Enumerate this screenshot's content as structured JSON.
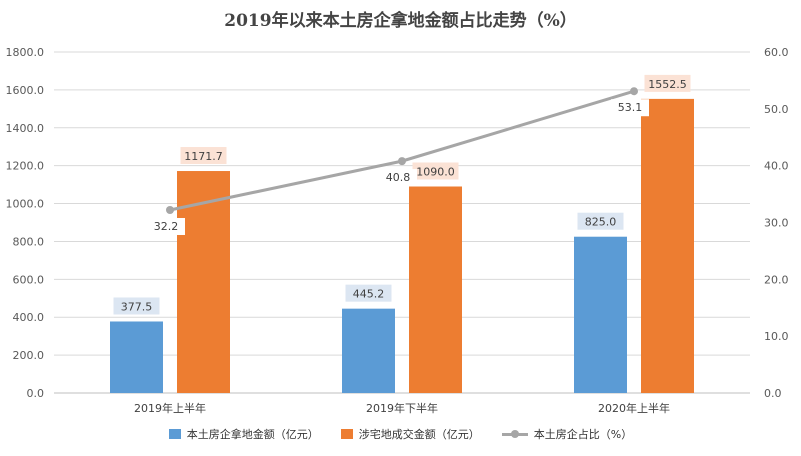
{
  "chart_data": {
    "type": "bar",
    "title": "2019年以来本土房企拿地金额占比走势（%）",
    "categories": [
      "2019年上半年",
      "2019年下半年",
      "2020年上半年"
    ],
    "series": [
      {
        "name": "本土房企拿地金额（亿元）",
        "type": "bar",
        "axis": "left",
        "color": "#5b9bd5",
        "values": [
          377.5,
          445.2,
          825.0
        ],
        "labels": [
          "377.5",
          "445.2",
          "825.0"
        ]
      },
      {
        "name": "涉宅地成交金额（亿元）",
        "type": "bar",
        "axis": "left",
        "color": "#ed7d31",
        "values": [
          1171.7,
          1090.0,
          1552.5
        ],
        "labels": [
          "1171.7",
          "1090.0",
          "1552.5"
        ]
      },
      {
        "name": "本土房企占比（%）",
        "type": "line",
        "axis": "right",
        "color": "#a6a6a6",
        "values": [
          32.2,
          40.8,
          53.1
        ],
        "labels": [
          "32.2",
          "40.8",
          "53.1"
        ]
      }
    ],
    "y_left": {
      "min": 0,
      "max": 1800,
      "ticks": [
        "0.0",
        "200.0",
        "400.0",
        "600.0",
        "800.0",
        "1000.0",
        "1200.0",
        "1400.0",
        "1600.0",
        "1800.0"
      ]
    },
    "y_right": {
      "min": 0,
      "max": 60,
      "ticks": [
        "0.0",
        "10.0",
        "20.0",
        "30.0",
        "40.0",
        "50.0",
        "60.0"
      ]
    },
    "grid": true,
    "legend_position": "bottom"
  }
}
